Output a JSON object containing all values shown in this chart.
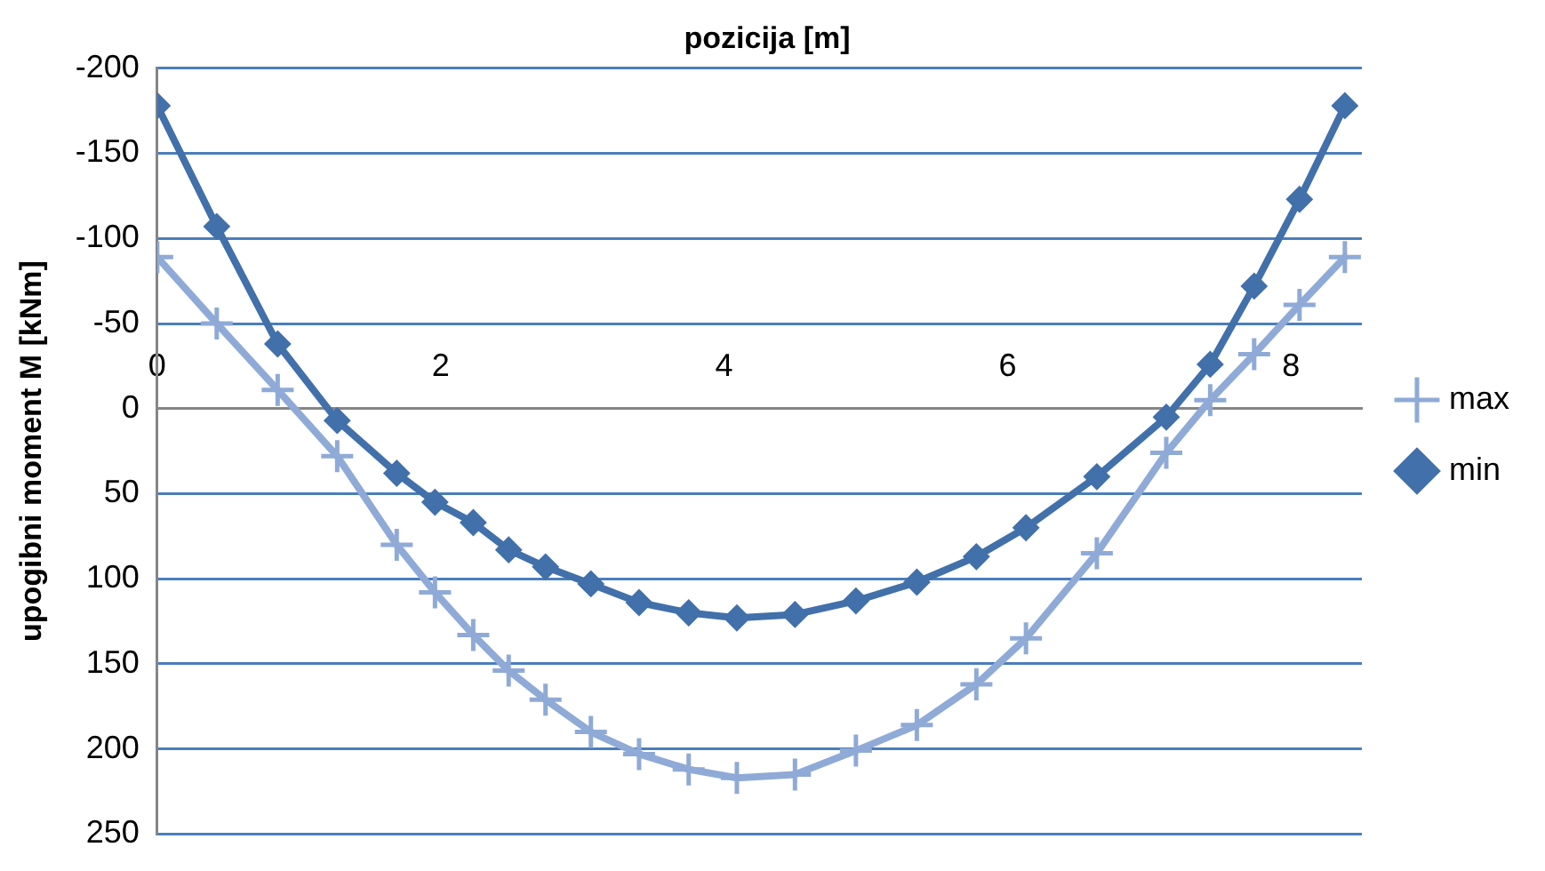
{
  "chart_data": {
    "type": "line",
    "xlabel": "pozicija [m]",
    "ylabel": "upogibni moment M [kNm]",
    "x": [
      0,
      0.42,
      0.85,
      1.27,
      1.69,
      1.96,
      2.23,
      2.48,
      2.74,
      3.06,
      3.4,
      3.75,
      4.09,
      4.5,
      4.93,
      5.36,
      5.78,
      6.13,
      6.63,
      7.12,
      7.43,
      7.74,
      8.06,
      8.38
    ],
    "series": [
      {
        "name": "max",
        "color": "#8faad6",
        "marker": "cross",
        "values": [
          -89,
          -50,
          -11,
          28,
          80,
          108,
          133,
          154,
          171,
          190,
          203,
          212,
          217,
          215,
          201,
          186,
          162,
          135,
          85,
          26,
          -5,
          -32,
          -61,
          -89
        ]
      },
      {
        "name": "min",
        "color": "#4270aa",
        "marker": "diamond",
        "values": [
          -178,
          -107,
          -38,
          7,
          38,
          55,
          67,
          83,
          93,
          103,
          114,
          120,
          123,
          121,
          113,
          102,
          87,
          70,
          40,
          5,
          -26,
          -72,
          -123,
          -178
        ]
      }
    ],
    "xlim": [
      0,
      8.5
    ],
    "xticks": [
      0,
      2,
      4,
      6,
      8
    ],
    "ylim": [
      250,
      -200
    ],
    "yticks": [
      -200,
      -150,
      -100,
      -50,
      0,
      50,
      100,
      150,
      200,
      250
    ],
    "grid": "y",
    "legend": "right",
    "line_style": "solid"
  }
}
